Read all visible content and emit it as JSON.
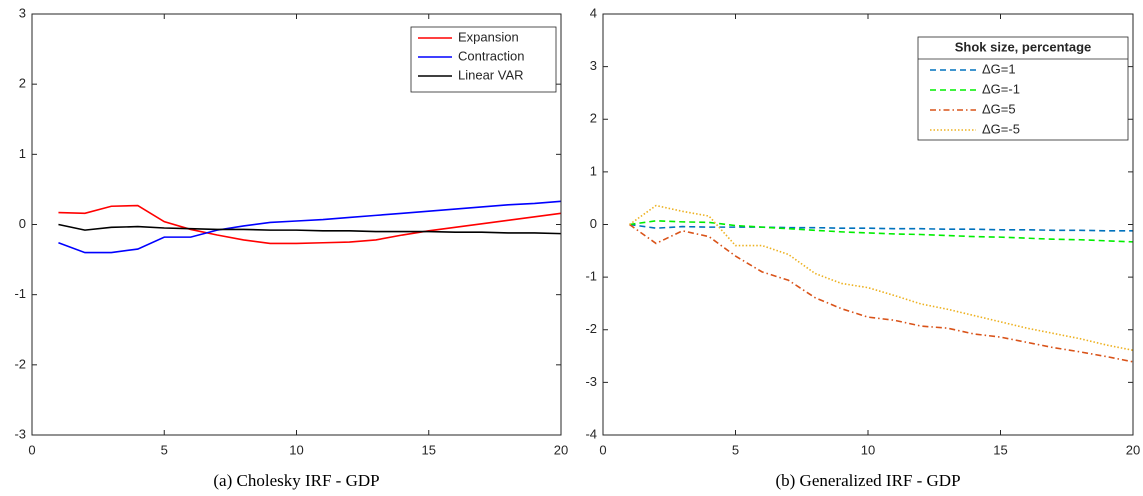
{
  "chart_data": [
    {
      "type": "line",
      "caption": "(a) Cholesky IRF - GDP",
      "x": [
        1,
        2,
        3,
        4,
        5,
        6,
        7,
        8,
        9,
        10,
        11,
        12,
        13,
        14,
        15,
        16,
        17,
        18,
        19,
        20
      ],
      "series": [
        {
          "name": "Expansion",
          "color": "#ff0000",
          "dash": "solid",
          "values": [
            0.17,
            0.16,
            0.26,
            0.27,
            0.04,
            -0.07,
            -0.15,
            -0.22,
            -0.27,
            -0.27,
            -0.26,
            -0.25,
            -0.22,
            -0.15,
            -0.09,
            -0.04,
            0.01,
            0.06,
            0.11,
            0.16
          ]
        },
        {
          "name": "Contraction",
          "color": "#0000ff",
          "dash": "solid",
          "values": [
            -0.26,
            -0.4,
            -0.4,
            -0.35,
            -0.18,
            -0.18,
            -0.08,
            -0.02,
            0.03,
            0.05,
            0.07,
            0.1,
            0.13,
            0.16,
            0.19,
            0.22,
            0.25,
            0.28,
            0.3,
            0.33
          ]
        },
        {
          "name": "Linear VAR",
          "color": "#000000",
          "dash": "solid",
          "values": [
            0.0,
            -0.08,
            -0.04,
            -0.03,
            -0.05,
            -0.06,
            -0.07,
            -0.07,
            -0.08,
            -0.08,
            -0.09,
            -0.09,
            -0.1,
            -0.1,
            -0.1,
            -0.11,
            -0.11,
            -0.12,
            -0.12,
            -0.13
          ]
        }
      ],
      "xlim": [
        0,
        20
      ],
      "xticks": [
        0,
        5,
        10,
        15,
        20
      ],
      "ylim": [
        -3,
        3
      ],
      "yticks": [
        -3,
        -2,
        -1,
        0,
        1,
        2,
        3
      ],
      "legend": "upper-right"
    },
    {
      "type": "line",
      "caption": "(b) Generalized IRF - GDP",
      "legend_title": "Shok size, percentage",
      "x": [
        1,
        2,
        3,
        4,
        5,
        6,
        7,
        8,
        9,
        10,
        11,
        12,
        13,
        14,
        15,
        16,
        17,
        18,
        19,
        20
      ],
      "series": [
        {
          "name": "ΔG=1",
          "color": "#0072bd",
          "dash": "dashed",
          "values": [
            0,
            -0.07,
            -0.04,
            -0.05,
            -0.05,
            -0.05,
            -0.06,
            -0.06,
            -0.07,
            -0.07,
            -0.08,
            -0.08,
            -0.09,
            -0.09,
            -0.1,
            -0.1,
            -0.11,
            -0.11,
            -0.12,
            -0.12
          ]
        },
        {
          "name": "ΔG=-1",
          "color": "#00ee00",
          "dash": "dashed",
          "values": [
            0,
            0.07,
            0.05,
            0.04,
            -0.02,
            -0.05,
            -0.08,
            -0.11,
            -0.14,
            -0.16,
            -0.18,
            -0.19,
            -0.21,
            -0.23,
            -0.24,
            -0.26,
            -0.28,
            -0.29,
            -0.31,
            -0.33
          ]
        },
        {
          "name": "ΔG=5",
          "color": "#d95319",
          "dash": "dashdot",
          "values": [
            0,
            -0.36,
            -0.12,
            -0.23,
            -0.6,
            -0.9,
            -1.06,
            -1.39,
            -1.6,
            -1.76,
            -1.82,
            -1.93,
            -1.97,
            -2.08,
            -2.14,
            -2.24,
            -2.34,
            -2.42,
            -2.51,
            -2.61
          ]
        },
        {
          "name": "ΔG=-5",
          "color": "#edb120",
          "dash": "dotted",
          "values": [
            0,
            0.36,
            0.25,
            0.16,
            -0.4,
            -0.4,
            -0.57,
            -0.93,
            -1.12,
            -1.2,
            -1.35,
            -1.51,
            -1.61,
            -1.73,
            -1.85,
            -1.97,
            -2.07,
            -2.17,
            -2.29,
            -2.39
          ]
        }
      ],
      "xlim": [
        0,
        20
      ],
      "xticks": [
        0,
        5,
        10,
        15,
        20
      ],
      "ylim": [
        -4,
        4
      ],
      "yticks": [
        -4,
        -3,
        -2,
        -1,
        0,
        1,
        2,
        3,
        4
      ],
      "legend": "upper-right"
    }
  ]
}
